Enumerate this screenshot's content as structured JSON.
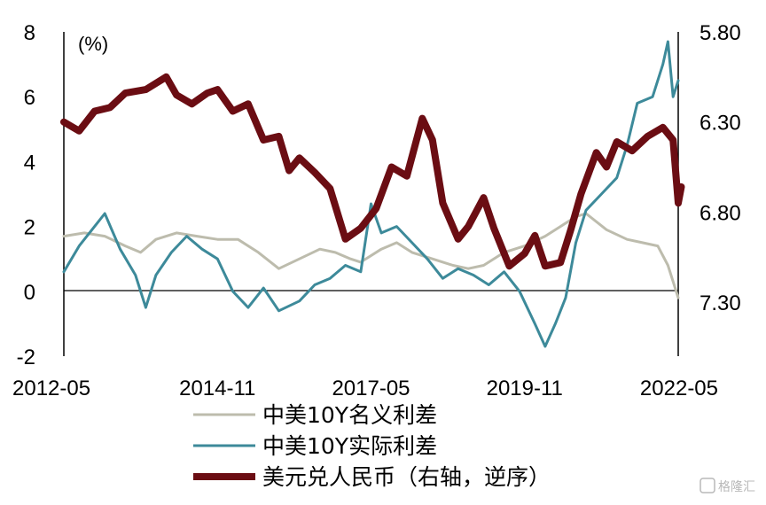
{
  "chart_data": {
    "type": "line",
    "unit_label": "(%)",
    "x_ticks": [
      "2012-05",
      "2014-11",
      "2017-05",
      "2019-11",
      "2022-05"
    ],
    "x_range": [
      "2012-05",
      "2022-05"
    ],
    "y_left": {
      "range": [
        -2,
        8
      ],
      "ticks": [
        "-2",
        "0",
        "2",
        "4",
        "6",
        "8"
      ]
    },
    "y_right": {
      "range": [
        5.8,
        7.6
      ],
      "inverted": true,
      "ticks": [
        "5.80",
        "6.30",
        "6.80",
        "7.30"
      ]
    },
    "grid": false,
    "legend_position": "bottom",
    "series": [
      {
        "name": "中美10Y名义利差",
        "axis": "left",
        "color": "#bdbcad",
        "points": [
          [
            "2012-05",
            1.7
          ],
          [
            "2012-09",
            1.8
          ],
          [
            "2013-01",
            1.7
          ],
          [
            "2013-05",
            1.4
          ],
          [
            "2013-08",
            1.2
          ],
          [
            "2013-11",
            1.6
          ],
          [
            "2014-03",
            1.8
          ],
          [
            "2014-07",
            1.7
          ],
          [
            "2014-11",
            1.6
          ],
          [
            "2015-03",
            1.6
          ],
          [
            "2015-07",
            1.2
          ],
          [
            "2015-11",
            0.7
          ],
          [
            "2016-03",
            1.0
          ],
          [
            "2016-07",
            1.3
          ],
          [
            "2016-10",
            1.2
          ],
          [
            "2017-01",
            1.0
          ],
          [
            "2017-03",
            0.9
          ],
          [
            "2017-07",
            1.3
          ],
          [
            "2017-10",
            1.5
          ],
          [
            "2018-01",
            1.2
          ],
          [
            "2018-05",
            1.0
          ],
          [
            "2018-09",
            0.8
          ],
          [
            "2018-12",
            0.7
          ],
          [
            "2019-03",
            0.8
          ],
          [
            "2019-07",
            1.2
          ],
          [
            "2019-11",
            1.4
          ],
          [
            "2020-03",
            1.7
          ],
          [
            "2020-06",
            2.0
          ],
          [
            "2020-09",
            2.3
          ],
          [
            "2020-11",
            2.4
          ],
          [
            "2021-03",
            1.9
          ],
          [
            "2021-07",
            1.6
          ],
          [
            "2021-10",
            1.5
          ],
          [
            "2022-01",
            1.4
          ],
          [
            "2022-03",
            0.8
          ],
          [
            "2022-04",
            0.3
          ],
          [
            "2022-05",
            -0.2
          ]
        ]
      },
      {
        "name": "中美10Y实际利差",
        "axis": "left",
        "color": "#3d8a9a",
        "points": [
          [
            "2012-05",
            0.6
          ],
          [
            "2012-08",
            1.4
          ],
          [
            "2012-11",
            2.0
          ],
          [
            "2013-01",
            2.4
          ],
          [
            "2013-04",
            1.3
          ],
          [
            "2013-07",
            0.5
          ],
          [
            "2013-09",
            -0.5
          ],
          [
            "2013-11",
            0.5
          ],
          [
            "2014-02",
            1.2
          ],
          [
            "2014-05",
            1.7
          ],
          [
            "2014-08",
            1.3
          ],
          [
            "2014-11",
            1.0
          ],
          [
            "2015-02",
            0.0
          ],
          [
            "2015-05",
            -0.5
          ],
          [
            "2015-08",
            0.1
          ],
          [
            "2015-11",
            -0.6
          ],
          [
            "2016-03",
            -0.3
          ],
          [
            "2016-06",
            0.2
          ],
          [
            "2016-09",
            0.4
          ],
          [
            "2016-12",
            0.8
          ],
          [
            "2017-03",
            0.6
          ],
          [
            "2017-05",
            2.7
          ],
          [
            "2017-07",
            1.8
          ],
          [
            "2017-10",
            2.0
          ],
          [
            "2018-01",
            1.5
          ],
          [
            "2018-04",
            1.0
          ],
          [
            "2018-07",
            0.4
          ],
          [
            "2018-10",
            0.7
          ],
          [
            "2019-01",
            0.5
          ],
          [
            "2019-04",
            0.2
          ],
          [
            "2019-07",
            0.6
          ],
          [
            "2019-10",
            0.0
          ],
          [
            "2020-01",
            -1.0
          ],
          [
            "2020-03",
            -1.7
          ],
          [
            "2020-05",
            -1.0
          ],
          [
            "2020-07",
            -0.2
          ],
          [
            "2020-09",
            1.5
          ],
          [
            "2020-11",
            2.5
          ],
          [
            "2021-02",
            3.0
          ],
          [
            "2021-05",
            3.5
          ],
          [
            "2021-07",
            4.5
          ],
          [
            "2021-09",
            5.8
          ],
          [
            "2021-12",
            6.0
          ],
          [
            "2022-02",
            7.0
          ],
          [
            "2022-03",
            7.7
          ],
          [
            "2022-04",
            6.0
          ],
          [
            "2022-05",
            6.5
          ]
        ]
      },
      {
        "name": "美元兑人民币（右轴，逆序）",
        "axis": "right",
        "color": "#6b0d13",
        "points": [
          [
            "2012-05",
            6.3
          ],
          [
            "2012-08",
            6.35
          ],
          [
            "2012-11",
            6.24
          ],
          [
            "2013-02",
            6.22
          ],
          [
            "2013-05",
            6.14
          ],
          [
            "2013-09",
            6.12
          ],
          [
            "2014-01",
            6.05
          ],
          [
            "2014-03",
            6.15
          ],
          [
            "2014-06",
            6.2
          ],
          [
            "2014-09",
            6.14
          ],
          [
            "2014-11",
            6.12
          ],
          [
            "2015-02",
            6.24
          ],
          [
            "2015-05",
            6.2
          ],
          [
            "2015-08",
            6.4
          ],
          [
            "2015-11",
            6.38
          ],
          [
            "2016-01",
            6.57
          ],
          [
            "2016-03",
            6.5
          ],
          [
            "2016-06",
            6.58
          ],
          [
            "2016-09",
            6.67
          ],
          [
            "2016-12",
            6.95
          ],
          [
            "2017-03",
            6.89
          ],
          [
            "2017-06",
            6.78
          ],
          [
            "2017-09",
            6.55
          ],
          [
            "2017-12",
            6.6
          ],
          [
            "2018-03",
            6.28
          ],
          [
            "2018-05",
            6.4
          ],
          [
            "2018-07",
            6.75
          ],
          [
            "2018-10",
            6.95
          ],
          [
            "2018-12",
            6.88
          ],
          [
            "2019-03",
            6.72
          ],
          [
            "2019-05",
            6.89
          ],
          [
            "2019-08",
            7.1
          ],
          [
            "2019-11",
            7.03
          ],
          [
            "2020-01",
            6.93
          ],
          [
            "2020-03",
            7.1
          ],
          [
            "2020-06",
            7.08
          ],
          [
            "2020-08",
            6.9
          ],
          [
            "2020-10",
            6.7
          ],
          [
            "2021-01",
            6.47
          ],
          [
            "2021-03",
            6.55
          ],
          [
            "2021-05",
            6.41
          ],
          [
            "2021-08",
            6.46
          ],
          [
            "2021-11",
            6.38
          ],
          [
            "2022-02",
            6.33
          ],
          [
            "2022-04",
            6.4
          ],
          [
            "2022-05",
            6.75
          ],
          [
            "2022-05-20",
            6.66
          ]
        ]
      }
    ]
  },
  "watermark": "格隆汇"
}
